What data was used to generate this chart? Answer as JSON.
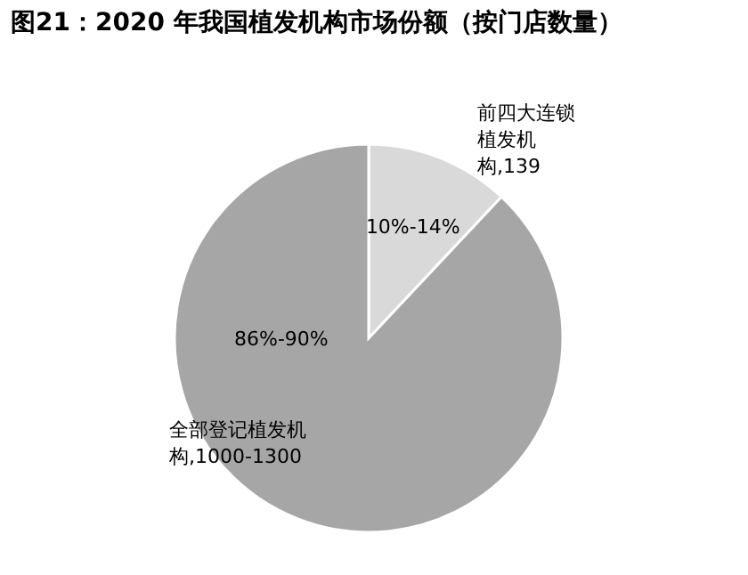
{
  "chart_data": {
    "type": "pie",
    "title": "图21：2020 年我国植发机构市场份额（按门店数量）",
    "categories": [
      "前四大连锁植发机构,139",
      "全部登记植发机构,1000-1300"
    ],
    "values": [
      12,
      88
    ],
    "annotations": [
      "10%-14%",
      "86%-90%"
    ],
    "colors": [
      "#d9d9d9",
      "#a6a6a6"
    ]
  }
}
